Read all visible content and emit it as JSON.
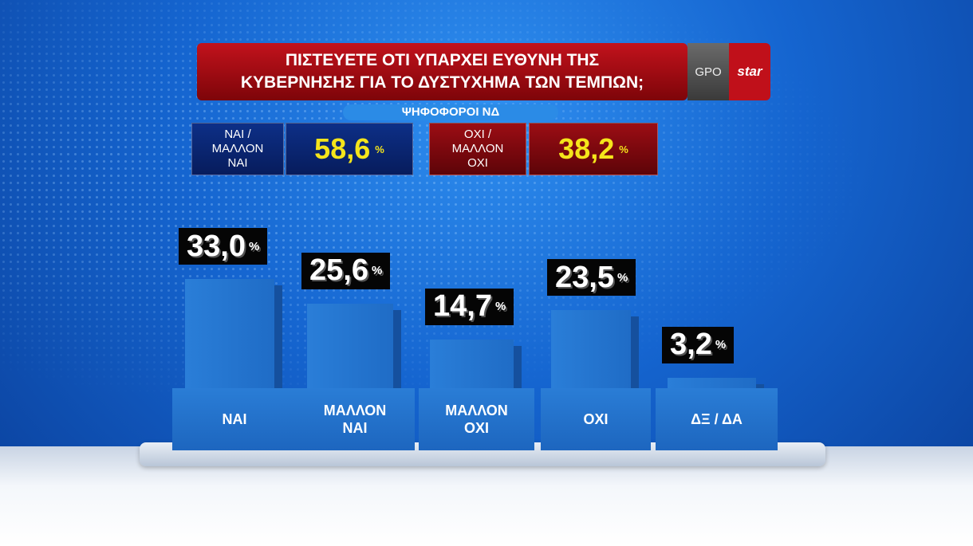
{
  "title": {
    "line1": "ΠΙΣΤΕΥΕΤΕ ΟΤΙ ΥΠΑΡΧΕΙ ΕΥΘΥΝΗ ΤΗΣ",
    "line2": "ΚΥΒΕΡΝΗΣΗΣ ΓΙΑ ΤΟ ΔΥΣΤΥΧΗΜΑ ΤΩΝ ΤΕΜΠΩΝ;"
  },
  "logo": {
    "gpo": "GPO",
    "star": "star"
  },
  "subtitle": "ΨΗΦΟΦΟΡΟΙ ΝΔ",
  "summary": {
    "yes": {
      "label_lines": [
        "ΝΑΙ /",
        "ΜΑΛΛΟΝ",
        "ΝΑΙ"
      ],
      "value": "58,6",
      "unit": "%"
    },
    "no": {
      "label_lines": [
        "ΟΧΙ /",
        "ΜΑΛΛΟΝ",
        "ΟΧΙ"
      ],
      "value": "38,2",
      "unit": "%"
    }
  },
  "colors": {
    "bar": "#1f6cc6",
    "value_text": "#f5e51b",
    "yes_box": "#0d2f87",
    "no_box": "#9b0d14",
    "title": "#c2121c"
  },
  "chart_data": {
    "type": "bar",
    "categories": [
      "ΝΑΙ",
      "ΜΑΛΛΟΝ ΝΑΙ",
      "ΜΑΛΛΟΝ ΟΧΙ",
      "ΟΧΙ",
      "ΔΞ / ΔΑ"
    ],
    "values": [
      33.0,
      25.6,
      14.7,
      23.5,
      3.2
    ],
    "data_labels": [
      "33,0",
      "25,6",
      "14,7",
      "23,5",
      "3,2"
    ],
    "unit": "%"
  }
}
